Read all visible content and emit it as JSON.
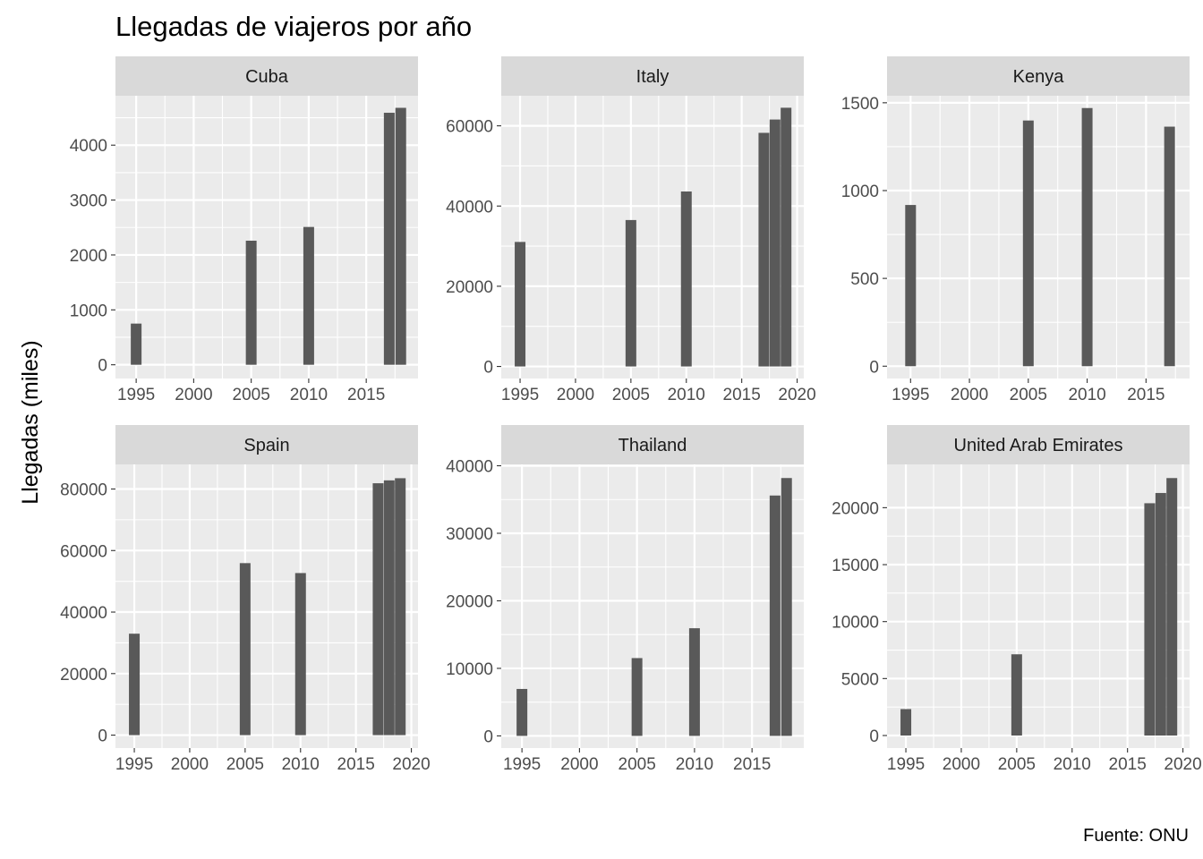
{
  "chart_data": {
    "type": "bar",
    "title": "Llegadas de viajeros por año",
    "ylabel": "Llegadas (miles)",
    "xlabel": "",
    "caption": "Fuente: ONU",
    "colors": {
      "bar": "#595959",
      "panel": "#ebebeb",
      "strip": "#d9d9d9",
      "grid": "#ffffff"
    },
    "facets": [
      {
        "name": "Cuba",
        "x": [
          1995,
          2005,
          2010,
          2017,
          2018
        ],
        "values": [
          750,
          2260,
          2510,
          4590,
          4680
        ],
        "xlim": [
          1993.2,
          2019.5
        ],
        "ylim": [
          -250,
          4900
        ],
        "xticks": [
          1995,
          2000,
          2005,
          2010,
          2015
        ],
        "yticks": [
          0,
          1000,
          2000,
          3000,
          4000
        ],
        "yticks_minor": [
          500,
          1500,
          2500,
          3500,
          4500
        ]
      },
      {
        "name": "Italy",
        "x": [
          1995,
          2005,
          2010,
          2017,
          2018,
          2019
        ],
        "values": [
          31050,
          36510,
          43630,
          58250,
          61570,
          64510
        ],
        "xlim": [
          1993.3,
          2020.6
        ],
        "ylim": [
          -3000,
          67500
        ],
        "xticks": [
          1995,
          2000,
          2005,
          2010,
          2015,
          2020
        ],
        "yticks": [
          0,
          20000,
          40000,
          60000
        ],
        "yticks_minor": [
          10000,
          30000,
          50000
        ]
      },
      {
        "name": "Kenya",
        "x": [
          1995,
          2005,
          2010,
          2017
        ],
        "values": [
          918,
          1399,
          1470,
          1364
        ],
        "xlim": [
          1993.0,
          2018.7
        ],
        "ylim": [
          -70,
          1540
        ],
        "xticks": [
          1995,
          2000,
          2005,
          2010,
          2015
        ],
        "yticks": [
          0,
          500,
          1000,
          1500
        ],
        "yticks_minor": [
          250,
          750,
          1250
        ]
      },
      {
        "name": "Spain",
        "x": [
          1995,
          2005,
          2010,
          2017,
          2018,
          2019
        ],
        "values": [
          32970,
          55910,
          52680,
          81870,
          82810,
          83510
        ],
        "xlim": [
          1993.3,
          2020.6
        ],
        "ylim": [
          -4200,
          88000
        ],
        "xticks": [
          1995,
          2000,
          2005,
          2010,
          2015,
          2020
        ],
        "yticks": [
          0,
          20000,
          40000,
          60000,
          80000
        ],
        "yticks_minor": [
          10000,
          30000,
          50000,
          70000
        ]
      },
      {
        "name": "Thailand",
        "x": [
          1995,
          2005,
          2010,
          2017,
          2018
        ],
        "values": [
          6950,
          11520,
          15940,
          35590,
          38180
        ],
        "xlim": [
          1993.2,
          2019.5
        ],
        "ylim": [
          -1800,
          40200
        ],
        "xticks": [
          1995,
          2000,
          2005,
          2010,
          2015
        ],
        "yticks": [
          0,
          10000,
          20000,
          30000,
          40000
        ],
        "yticks_minor": [
          5000,
          15000,
          25000,
          35000
        ]
      },
      {
        "name": "United Arab Emirates",
        "x": [
          1995,
          2005,
          2017,
          2018,
          2019
        ],
        "values": [
          2320,
          7130,
          20390,
          21290,
          22600
        ],
        "xlim": [
          1993.3,
          2020.6
        ],
        "ylim": [
          -1100,
          23800
        ],
        "xticks": [
          1995,
          2000,
          2005,
          2010,
          2015,
          2020
        ],
        "yticks": [
          0,
          5000,
          10000,
          15000,
          20000
        ],
        "yticks_minor": [
          2500,
          7500,
          12500,
          17500
        ]
      }
    ]
  }
}
